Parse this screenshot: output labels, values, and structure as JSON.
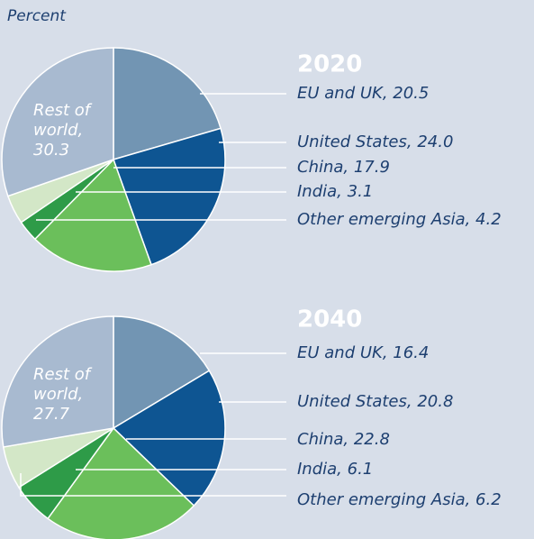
{
  "title": "Percent",
  "chart_data": [
    {
      "type": "pie",
      "title": "2020",
      "values": [
        20.5,
        24.0,
        17.9,
        3.1,
        4.2,
        30.3
      ],
      "value_labels": [
        "EU and UK, 20.5",
        "United States, 24.0",
        "China, 17.9",
        "India, 3.1",
        "Other emerging Asia, 4.2",
        "Rest of world, 30.3"
      ],
      "colors": [
        "#7295b3",
        "#0e5592",
        "#6bbf5b",
        "#2e9b48",
        "#d3e7c7",
        "#a8bad0"
      ]
    },
    {
      "type": "pie",
      "title": "2040",
      "values": [
        16.4,
        20.8,
        22.8,
        6.1,
        6.2,
        27.7
      ],
      "value_labels": [
        "EU and UK, 16.4",
        "United States, 20.8",
        "China, 22.8",
        "India, 6.1",
        "Other emerging Asia, 6.2",
        "Rest of world, 27.7"
      ],
      "colors": [
        "#7295b3",
        "#0e5592",
        "#6bbf5b",
        "#2e9b48",
        "#d3e7c7",
        "#a8bad0"
      ]
    }
  ]
}
